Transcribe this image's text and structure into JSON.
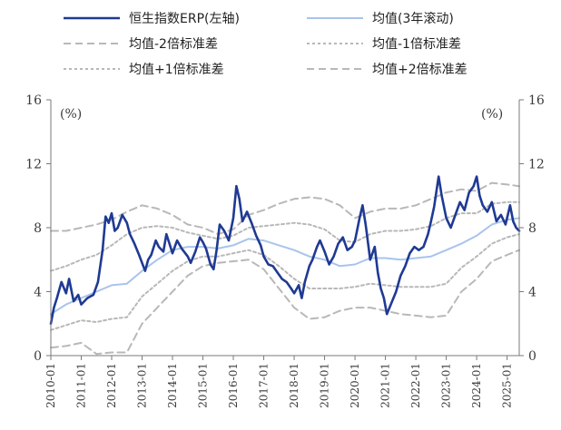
{
  "chart_data": {
    "type": "line",
    "y_left": {
      "unit_label": "(%)",
      "ylim": [
        0,
        16
      ],
      "ticks": [
        "0",
        "4",
        "8",
        "12",
        "16"
      ]
    },
    "y_right": {
      "unit_label": "(%)",
      "ylim": [
        0,
        16
      ],
      "ticks": [
        "0",
        "4",
        "8",
        "12",
        "16"
      ]
    },
    "x_ticks": [
      "2010-01",
      "2011-01",
      "2012-01",
      "2013-01",
      "2014-01",
      "2015-01",
      "2016-01",
      "2017-01",
      "2018-01",
      "2019-01",
      "2020-01",
      "2021-01",
      "2022-01",
      "2023-01",
      "2024-01",
      "2025-01"
    ],
    "x_range": [
      2010.0,
      2025.4
    ],
    "legend_placement": "top",
    "series": [
      {
        "name": "恒生指数ERP(左轴)",
        "color": "#1f3a93",
        "style": "solid-thick",
        "points": [
          [
            2010.0,
            2.0
          ],
          [
            2010.1,
            3.0
          ],
          [
            2010.2,
            3.6
          ],
          [
            2010.35,
            4.6
          ],
          [
            2010.5,
            3.9
          ],
          [
            2010.6,
            4.8
          ],
          [
            2010.75,
            3.4
          ],
          [
            2010.9,
            3.8
          ],
          [
            2011.0,
            3.2
          ],
          [
            2011.2,
            3.6
          ],
          [
            2011.4,
            3.8
          ],
          [
            2011.55,
            4.6
          ],
          [
            2011.7,
            6.6
          ],
          [
            2011.8,
            8.7
          ],
          [
            2011.9,
            8.3
          ],
          [
            2012.0,
            8.9
          ],
          [
            2012.1,
            7.8
          ],
          [
            2012.2,
            8.0
          ],
          [
            2012.35,
            8.8
          ],
          [
            2012.5,
            8.3
          ],
          [
            2012.6,
            7.6
          ],
          [
            2012.75,
            7.0
          ],
          [
            2012.9,
            6.3
          ],
          [
            2013.0,
            5.8
          ],
          [
            2013.1,
            5.3
          ],
          [
            2013.2,
            6.0
          ],
          [
            2013.3,
            6.3
          ],
          [
            2013.45,
            7.2
          ],
          [
            2013.55,
            6.8
          ],
          [
            2013.7,
            6.5
          ],
          [
            2013.8,
            7.6
          ],
          [
            2013.9,
            7.0
          ],
          [
            2014.0,
            6.4
          ],
          [
            2014.15,
            7.2
          ],
          [
            2014.3,
            6.7
          ],
          [
            2014.5,
            6.2
          ],
          [
            2014.6,
            5.8
          ],
          [
            2014.75,
            6.5
          ],
          [
            2014.9,
            7.4
          ],
          [
            2015.0,
            7.1
          ],
          [
            2015.1,
            6.7
          ],
          [
            2015.25,
            5.7
          ],
          [
            2015.35,
            5.4
          ],
          [
            2015.45,
            6.6
          ],
          [
            2015.55,
            8.2
          ],
          [
            2015.7,
            7.8
          ],
          [
            2015.85,
            7.2
          ],
          [
            2016.0,
            8.6
          ],
          [
            2016.1,
            10.6
          ],
          [
            2016.2,
            9.8
          ],
          [
            2016.3,
            8.4
          ],
          [
            2016.45,
            9.0
          ],
          [
            2016.6,
            8.3
          ],
          [
            2016.75,
            7.5
          ],
          [
            2016.9,
            6.9
          ],
          [
            2017.0,
            6.2
          ],
          [
            2017.15,
            5.7
          ],
          [
            2017.3,
            5.6
          ],
          [
            2017.45,
            5.2
          ],
          [
            2017.6,
            4.8
          ],
          [
            2017.75,
            4.6
          ],
          [
            2017.9,
            4.2
          ],
          [
            2018.0,
            3.9
          ],
          [
            2018.15,
            4.4
          ],
          [
            2018.25,
            3.6
          ],
          [
            2018.35,
            4.6
          ],
          [
            2018.5,
            5.6
          ],
          [
            2018.6,
            6.0
          ],
          [
            2018.75,
            6.8
          ],
          [
            2018.85,
            7.2
          ],
          [
            2019.0,
            6.5
          ],
          [
            2019.15,
            5.7
          ],
          [
            2019.3,
            6.2
          ],
          [
            2019.45,
            7.0
          ],
          [
            2019.6,
            7.4
          ],
          [
            2019.75,
            6.6
          ],
          [
            2019.9,
            6.8
          ],
          [
            2020.0,
            7.2
          ],
          [
            2020.15,
            8.6
          ],
          [
            2020.25,
            9.4
          ],
          [
            2020.35,
            8.2
          ],
          [
            2020.5,
            6.0
          ],
          [
            2020.65,
            6.8
          ],
          [
            2020.75,
            5.2
          ],
          [
            2020.85,
            4.2
          ],
          [
            2020.95,
            3.6
          ],
          [
            2021.05,
            2.6
          ],
          [
            2021.2,
            3.3
          ],
          [
            2021.35,
            4.0
          ],
          [
            2021.5,
            5.0
          ],
          [
            2021.65,
            5.6
          ],
          [
            2021.8,
            6.4
          ],
          [
            2021.95,
            6.8
          ],
          [
            2022.1,
            6.6
          ],
          [
            2022.25,
            6.8
          ],
          [
            2022.4,
            7.6
          ],
          [
            2022.5,
            8.4
          ],
          [
            2022.6,
            9.3
          ],
          [
            2022.75,
            11.2
          ],
          [
            2022.85,
            10.0
          ],
          [
            2023.0,
            8.6
          ],
          [
            2023.15,
            8.0
          ],
          [
            2023.3,
            8.8
          ],
          [
            2023.45,
            9.6
          ],
          [
            2023.6,
            9.1
          ],
          [
            2023.75,
            10.2
          ],
          [
            2023.9,
            10.6
          ],
          [
            2024.0,
            11.2
          ],
          [
            2024.1,
            10.0
          ],
          [
            2024.2,
            9.4
          ],
          [
            2024.35,
            9.0
          ],
          [
            2024.5,
            9.6
          ],
          [
            2024.65,
            8.4
          ],
          [
            2024.8,
            8.8
          ],
          [
            2024.95,
            8.2
          ],
          [
            2025.1,
            9.4
          ],
          [
            2025.2,
            8.4
          ],
          [
            2025.3,
            8.0
          ],
          [
            2025.4,
            7.8
          ]
        ]
      },
      {
        "name": "均值(3年滚动)",
        "color": "#a9c4ec",
        "style": "solid",
        "points": [
          [
            2010.0,
            2.6
          ],
          [
            2010.5,
            3.2
          ],
          [
            2011.0,
            3.6
          ],
          [
            2011.5,
            4.0
          ],
          [
            2012.0,
            4.4
          ],
          [
            2012.5,
            4.5
          ],
          [
            2013.0,
            5.3
          ],
          [
            2013.5,
            6.0
          ],
          [
            2014.0,
            6.6
          ],
          [
            2014.5,
            6.8
          ],
          [
            2015.0,
            6.8
          ],
          [
            2015.5,
            6.7
          ],
          [
            2016.0,
            6.9
          ],
          [
            2016.5,
            7.3
          ],
          [
            2017.0,
            7.2
          ],
          [
            2017.5,
            6.9
          ],
          [
            2018.0,
            6.6
          ],
          [
            2018.5,
            6.2
          ],
          [
            2019.0,
            6.0
          ],
          [
            2019.5,
            5.6
          ],
          [
            2020.0,
            5.7
          ],
          [
            2020.5,
            6.1
          ],
          [
            2021.0,
            6.1
          ],
          [
            2021.5,
            6.0
          ],
          [
            2022.0,
            6.1
          ],
          [
            2022.5,
            6.2
          ],
          [
            2023.0,
            6.6
          ],
          [
            2023.5,
            7.0
          ],
          [
            2024.0,
            7.5
          ],
          [
            2024.5,
            8.2
          ],
          [
            2025.0,
            8.5
          ],
          [
            2025.4,
            8.6
          ]
        ]
      },
      {
        "name": "均值-2倍标准差",
        "color": "#b8b8b8",
        "style": "dash-long",
        "points": [
          [
            2010.0,
            0.5
          ],
          [
            2010.5,
            0.6
          ],
          [
            2011.0,
            0.8
          ],
          [
            2011.5,
            0.1
          ],
          [
            2012.0,
            0.2
          ],
          [
            2012.5,
            0.2
          ],
          [
            2013.0,
            2.0
          ],
          [
            2013.5,
            3.0
          ],
          [
            2014.0,
            4.0
          ],
          [
            2014.5,
            5.0
          ],
          [
            2015.0,
            5.6
          ],
          [
            2015.5,
            5.8
          ],
          [
            2016.0,
            5.9
          ],
          [
            2016.5,
            6.0
          ],
          [
            2017.0,
            5.4
          ],
          [
            2017.5,
            4.2
          ],
          [
            2018.0,
            3.0
          ],
          [
            2018.5,
            2.3
          ],
          [
            2019.0,
            2.4
          ],
          [
            2019.5,
            2.8
          ],
          [
            2020.0,
            3.0
          ],
          [
            2020.5,
            3.0
          ],
          [
            2021.0,
            2.8
          ],
          [
            2021.5,
            2.6
          ],
          [
            2022.0,
            2.5
          ],
          [
            2022.5,
            2.4
          ],
          [
            2023.0,
            2.5
          ],
          [
            2023.5,
            4.0
          ],
          [
            2024.0,
            4.8
          ],
          [
            2024.5,
            5.9
          ],
          [
            2025.0,
            6.3
          ],
          [
            2025.4,
            6.6
          ]
        ]
      },
      {
        "name": "均值-1倍标准差",
        "color": "#b8b8b8",
        "style": "dash-short",
        "points": [
          [
            2010.0,
            1.6
          ],
          [
            2010.5,
            1.9
          ],
          [
            2011.0,
            2.2
          ],
          [
            2011.5,
            2.1
          ],
          [
            2012.0,
            2.3
          ],
          [
            2012.5,
            2.4
          ],
          [
            2013.0,
            3.7
          ],
          [
            2013.5,
            4.5
          ],
          [
            2014.0,
            5.3
          ],
          [
            2014.5,
            5.9
          ],
          [
            2015.0,
            6.2
          ],
          [
            2015.5,
            6.2
          ],
          [
            2016.0,
            6.4
          ],
          [
            2016.5,
            6.6
          ],
          [
            2017.0,
            6.3
          ],
          [
            2017.5,
            5.6
          ],
          [
            2018.0,
            4.8
          ],
          [
            2018.5,
            4.2
          ],
          [
            2019.0,
            4.2
          ],
          [
            2019.5,
            4.2
          ],
          [
            2020.0,
            4.3
          ],
          [
            2020.5,
            4.5
          ],
          [
            2021.0,
            4.4
          ],
          [
            2021.5,
            4.3
          ],
          [
            2022.0,
            4.3
          ],
          [
            2022.5,
            4.3
          ],
          [
            2023.0,
            4.5
          ],
          [
            2023.5,
            5.5
          ],
          [
            2024.0,
            6.2
          ],
          [
            2024.5,
            7.0
          ],
          [
            2025.0,
            7.4
          ],
          [
            2025.4,
            7.6
          ]
        ]
      },
      {
        "name": "均值+1倍标准差",
        "color": "#b8b8b8",
        "style": "dash-short",
        "points": [
          [
            2010.0,
            5.3
          ],
          [
            2010.5,
            5.6
          ],
          [
            2011.0,
            6.0
          ],
          [
            2011.5,
            6.3
          ],
          [
            2012.0,
            6.9
          ],
          [
            2012.5,
            7.6
          ],
          [
            2013.0,
            8.0
          ],
          [
            2013.5,
            8.1
          ],
          [
            2014.0,
            8.0
          ],
          [
            2014.5,
            7.7
          ],
          [
            2015.0,
            7.5
          ],
          [
            2015.5,
            7.3
          ],
          [
            2016.0,
            7.5
          ],
          [
            2016.5,
            8.0
          ],
          [
            2017.0,
            8.1
          ],
          [
            2017.5,
            8.2
          ],
          [
            2018.0,
            8.3
          ],
          [
            2018.5,
            8.2
          ],
          [
            2019.0,
            7.9
          ],
          [
            2019.5,
            7.2
          ],
          [
            2020.0,
            7.1
          ],
          [
            2020.5,
            7.6
          ],
          [
            2021.0,
            7.8
          ],
          [
            2021.5,
            7.8
          ],
          [
            2022.0,
            7.9
          ],
          [
            2022.5,
            8.1
          ],
          [
            2023.0,
            8.6
          ],
          [
            2023.5,
            8.9
          ],
          [
            2024.0,
            8.9
          ],
          [
            2024.5,
            9.5
          ],
          [
            2025.0,
            9.6
          ],
          [
            2025.4,
            9.6
          ]
        ]
      },
      {
        "name": "均值+2倍标准差",
        "color": "#b8b8b8",
        "style": "dash-long",
        "points": [
          [
            2010.0,
            7.8
          ],
          [
            2010.5,
            7.8
          ],
          [
            2011.0,
            8.0
          ],
          [
            2011.5,
            8.2
          ],
          [
            2012.0,
            8.5
          ],
          [
            2012.5,
            9.0
          ],
          [
            2013.0,
            9.4
          ],
          [
            2013.5,
            9.2
          ],
          [
            2014.0,
            8.8
          ],
          [
            2014.5,
            8.2
          ],
          [
            2015.0,
            8.0
          ],
          [
            2015.5,
            7.6
          ],
          [
            2016.0,
            7.9
          ],
          [
            2016.5,
            8.8
          ],
          [
            2017.0,
            9.1
          ],
          [
            2017.5,
            9.5
          ],
          [
            2018.0,
            9.8
          ],
          [
            2018.5,
            9.9
          ],
          [
            2019.0,
            9.8
          ],
          [
            2019.5,
            9.4
          ],
          [
            2020.0,
            8.6
          ],
          [
            2020.5,
            9.0
          ],
          [
            2021.0,
            9.2
          ],
          [
            2021.5,
            9.2
          ],
          [
            2022.0,
            9.4
          ],
          [
            2022.5,
            9.8
          ],
          [
            2023.0,
            10.2
          ],
          [
            2023.5,
            10.4
          ],
          [
            2024.0,
            10.3
          ],
          [
            2024.5,
            10.8
          ],
          [
            2025.0,
            10.7
          ],
          [
            2025.4,
            10.6
          ]
        ]
      }
    ],
    "legend": [
      {
        "label": "恒生指数ERP(左轴)",
        "series_index": 0
      },
      {
        "label": "均值(3年滚动)",
        "series_index": 1
      },
      {
        "label": "均值-2倍标准差",
        "series_index": 2
      },
      {
        "label": "均值-1倍标准差",
        "series_index": 3
      },
      {
        "label": "均值+1倍标准差",
        "series_index": 4
      },
      {
        "label": "均值+2倍标准差",
        "series_index": 5
      }
    ]
  }
}
